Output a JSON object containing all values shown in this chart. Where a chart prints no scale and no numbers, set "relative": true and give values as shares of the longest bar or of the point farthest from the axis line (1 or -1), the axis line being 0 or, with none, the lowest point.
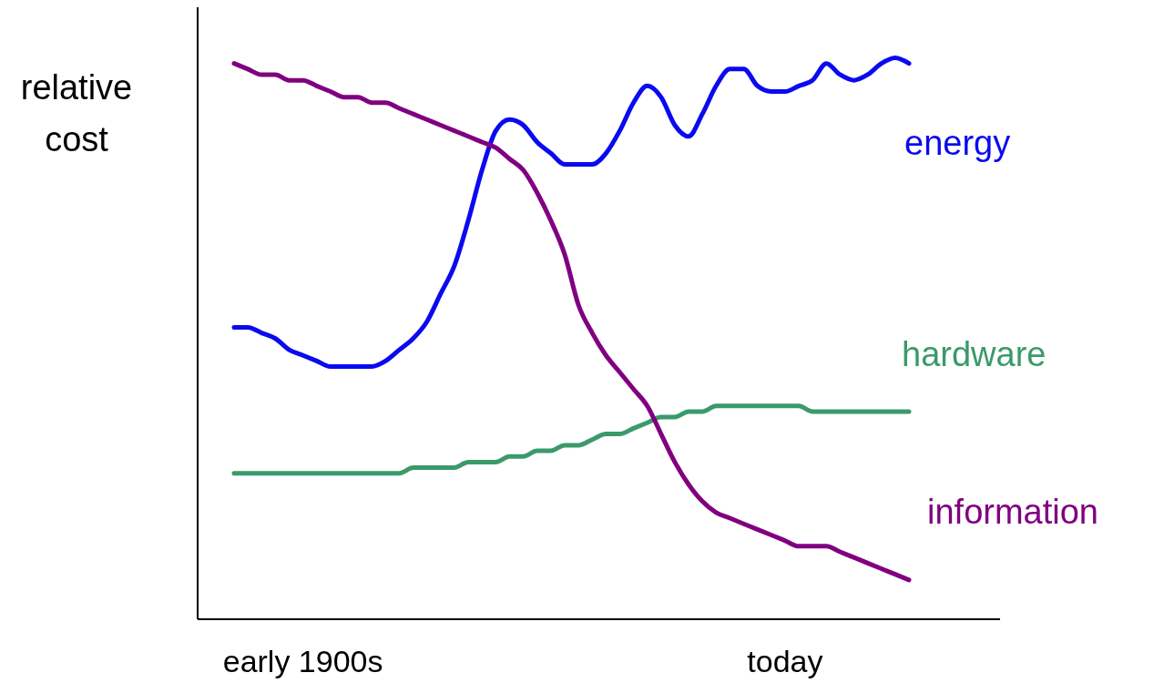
{
  "chart_data": {
    "type": "line",
    "relative": true,
    "ylabel": "relative cost",
    "marker": "none",
    "line_style": "solid",
    "categories": [
      null,
      null,
      null,
      null,
      null,
      "early 1900s",
      null,
      null,
      null,
      null,
      null,
      null,
      null,
      null,
      null,
      null,
      null,
      null,
      null,
      null,
      null,
      null,
      null,
      null,
      null,
      null,
      null,
      null,
      null,
      null,
      null,
      null,
      null,
      null,
      null,
      null,
      null,
      null,
      null,
      null,
      "today",
      null,
      null,
      null,
      null,
      null,
      null,
      null,
      null,
      null
    ],
    "series": [
      {
        "name": "energy",
        "color": "#0a0af0",
        "values": [
          0.52,
          0.52,
          0.51,
          0.5,
          0.48,
          0.47,
          0.46,
          0.45,
          0.45,
          0.45,
          0.45,
          0.46,
          0.48,
          0.5,
          0.53,
          0.58,
          0.63,
          0.71,
          0.8,
          0.87,
          0.89,
          0.88,
          0.85,
          0.83,
          0.81,
          0.81,
          0.81,
          0.83,
          0.87,
          0.92,
          0.95,
          0.93,
          0.88,
          0.86,
          0.9,
          0.95,
          0.98,
          0.98,
          0.95,
          0.94,
          0.94,
          0.95,
          0.96,
          0.99,
          0.97,
          0.96,
          0.97,
          0.99,
          1,
          0.99
        ]
      },
      {
        "name": "hardware",
        "color": "#3a9a6a",
        "values": [
          0.26,
          0.26,
          0.26,
          0.26,
          0.26,
          0.26,
          0.26,
          0.26,
          0.26,
          0.26,
          0.26,
          0.26,
          0.26,
          0.27,
          0.27,
          0.27,
          0.27,
          0.28,
          0.28,
          0.28,
          0.29,
          0.29,
          0.3,
          0.3,
          0.31,
          0.31,
          0.32,
          0.33,
          0.33,
          0.34,
          0.35,
          0.36,
          0.36,
          0.37,
          0.37,
          0.38,
          0.38,
          0.38,
          0.38,
          0.38,
          0.38,
          0.38,
          0.37,
          0.37,
          0.37,
          0.37,
          0.37,
          0.37,
          0.37,
          0.37
        ]
      },
      {
        "name": "information",
        "color": "#800080",
        "values": [
          0.99,
          0.98,
          0.97,
          0.97,
          0.96,
          0.96,
          0.95,
          0.94,
          0.93,
          0.93,
          0.92,
          0.92,
          0.91,
          0.9,
          0.89,
          0.88,
          0.87,
          0.86,
          0.85,
          0.84,
          0.82,
          0.8,
          0.76,
          0.71,
          0.65,
          0.56,
          0.51,
          0.47,
          0.44,
          0.41,
          0.38,
          0.33,
          0.28,
          0.24,
          0.21,
          0.19,
          0.18,
          0.17,
          0.16,
          0.15,
          0.14,
          0.13,
          0.13,
          0.13,
          0.12,
          0.11,
          0.1,
          0.09,
          0.08,
          0.07
        ]
      }
    ]
  }
}
